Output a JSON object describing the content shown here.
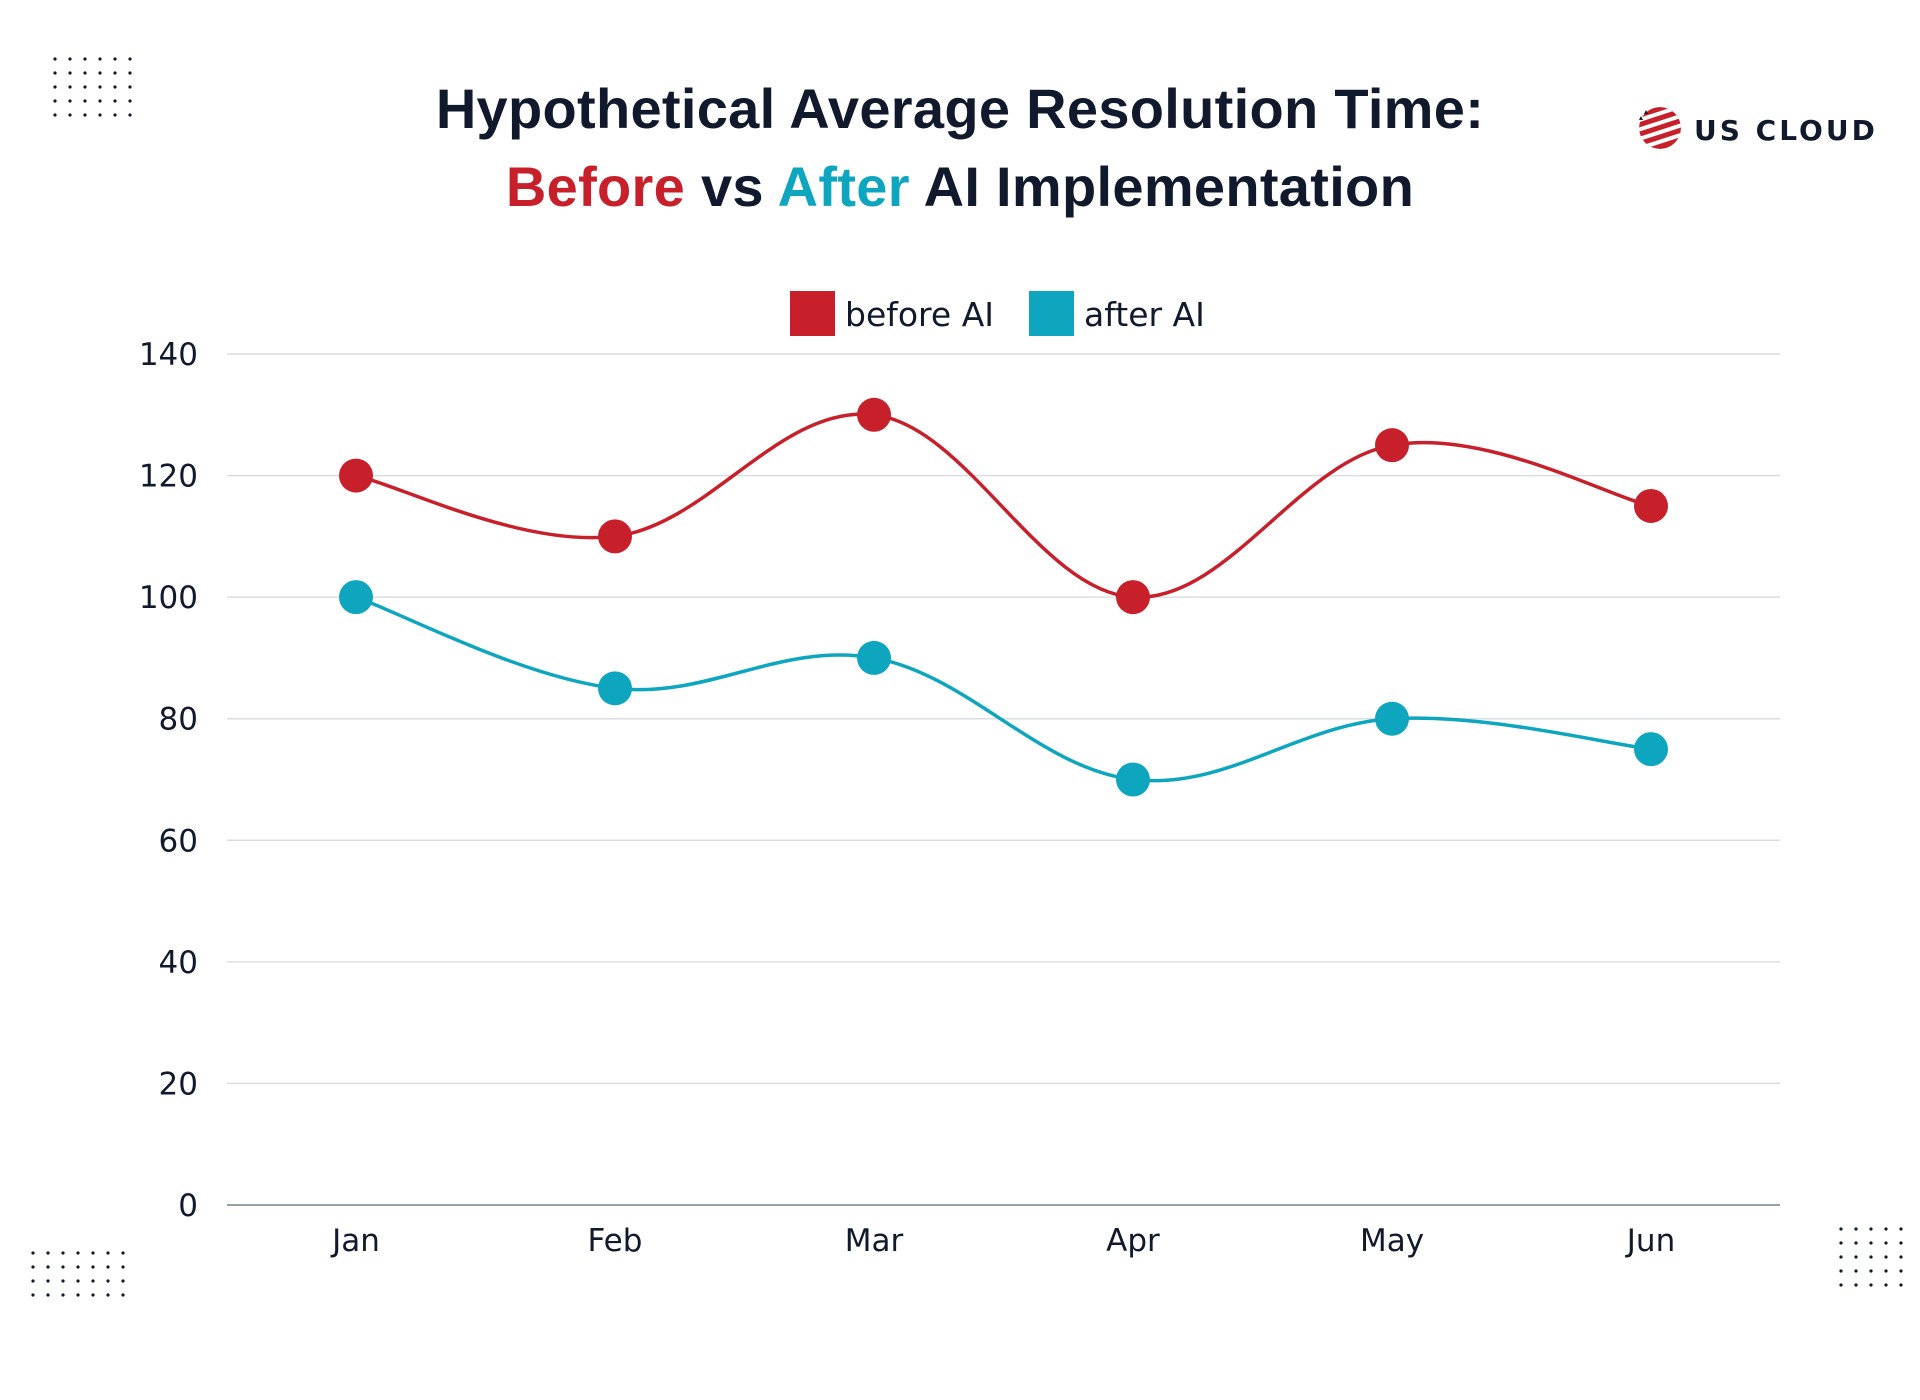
{
  "header": {
    "title_line1": "Hypothetical Average Resolution Time:",
    "title_before": "Before",
    "title_vs": " vs ",
    "title_after": "After",
    "title_rest": " AI Implementation"
  },
  "logo": {
    "text": "US CLOUD",
    "icon": "globe-stripes-icon",
    "color": "#c8202b"
  },
  "colors": {
    "before": "#c8202b",
    "after": "#0ea6bf",
    "grid": "#dadde2",
    "axis": "#9aa0a8",
    "text": "#111a2c"
  },
  "chart_data": {
    "type": "line",
    "title": "Hypothetical Average Resolution Time: Before vs After AI Implementation",
    "categories": [
      "Jan",
      "Feb",
      "Mar",
      "Apr",
      "May",
      "Jun"
    ],
    "series": [
      {
        "name": "before AI",
        "values": [
          120,
          110,
          130,
          100,
          125,
          115
        ],
        "color": "#c8202b"
      },
      {
        "name": "after AI",
        "values": [
          100,
          85,
          90,
          70,
          80,
          75
        ],
        "color": "#0ea6bf"
      }
    ],
    "yticks": [
      0,
      20,
      40,
      60,
      80,
      100,
      120,
      140
    ],
    "ylim": [
      0,
      140
    ],
    "xlabel": "",
    "ylabel": "",
    "grid": true,
    "legend_position": "top-center",
    "smooth": true
  }
}
